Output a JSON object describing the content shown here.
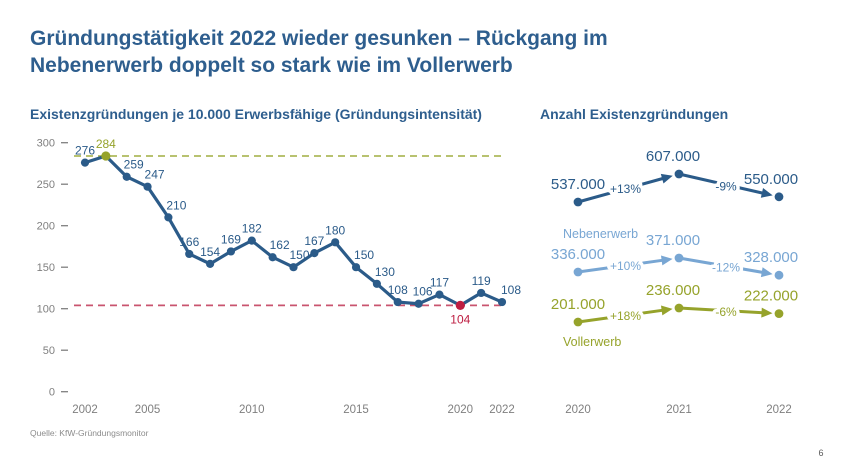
{
  "slide": {
    "title": "Gründungstätigkeit 2022 wieder gesunken – Rückgang im Nebenerwerb doppelt so stark wie im Vollerwerb",
    "source": "Quelle: KfW-Gründungsmonitor",
    "page_number": "6"
  },
  "colors": {
    "title_blue": "#2E5E8E",
    "dark_blue": "#2B5B89",
    "light_blue": "#78A6D3",
    "olive": "#96A32B",
    "olive_dash": "#AFB95C",
    "red": "#BE1E42",
    "red_dash": "#C9546F",
    "axis_gray": "#7F7F7F",
    "source_gray": "#8C8C8C"
  },
  "chart_data": [
    {
      "type": "line",
      "title": "Existenzgründungen je 10.000 Erwerbsfähige (Gründungsintensität)",
      "x": [
        2002,
        2003,
        2004,
        2005,
        2006,
        2007,
        2008,
        2009,
        2010,
        2011,
        2012,
        2013,
        2014,
        2015,
        2016,
        2017,
        2018,
        2019,
        2020,
        2021,
        2022
      ],
      "values": [
        276,
        284,
        259,
        247,
        210,
        166,
        154,
        169,
        182,
        162,
        150,
        167,
        180,
        150,
        130,
        108,
        106,
        117,
        104,
        119,
        108
      ],
      "x_tick_labels": [
        "2002",
        "2005",
        "2010",
        "2015",
        "2020",
        "2022"
      ],
      "x_tick_years": [
        2002,
        2005,
        2010,
        2015,
        2020,
        2022
      ],
      "y_tick_labels": [
        "0",
        "50",
        "100",
        "150",
        "200",
        "250",
        "300"
      ],
      "y_ticks": [
        0,
        50,
        100,
        150,
        200,
        250,
        300
      ],
      "ylim": [
        0,
        300
      ],
      "grid": false,
      "legend": "none",
      "highlight_points": [
        {
          "year": 2003,
          "value": 284,
          "color_key": "olive",
          "label_below": false
        },
        {
          "year": 2020,
          "value": 104,
          "color_key": "red",
          "label_below": true
        }
      ],
      "ref_lines": [
        {
          "value": 284,
          "color_key": "olive_dash",
          "style": "dashed"
        },
        {
          "value": 104,
          "color_key": "red_dash",
          "style": "dashed"
        }
      ]
    },
    {
      "type": "line",
      "title": "Anzahl Existenzgründungen",
      "categories": [
        "2020",
        "2021",
        "2022"
      ],
      "legend": "inline-labels",
      "series": [
        {
          "name": "",
          "label_position": "none",
          "color_key": "dark_blue",
          "values": [
            537000,
            607000,
            550000
          ],
          "value_labels": [
            "537.000",
            "607.000",
            "550.000"
          ],
          "change_labels": [
            "+13%",
            "-9%"
          ]
        },
        {
          "name": "Nebenerwerb",
          "label_position": "above",
          "color_key": "light_blue",
          "values": [
            336000,
            371000,
            328000
          ],
          "value_labels": [
            "336.000",
            "371.000",
            "328.000"
          ],
          "change_labels": [
            "+10%",
            "-12%"
          ]
        },
        {
          "name": "Vollerwerb",
          "label_position": "below",
          "color_key": "olive",
          "values": [
            201000,
            236000,
            222000
          ],
          "value_labels": [
            "201.000",
            "236.000",
            "222.000"
          ],
          "change_labels": [
            "+18%",
            "-6%"
          ]
        }
      ]
    }
  ]
}
